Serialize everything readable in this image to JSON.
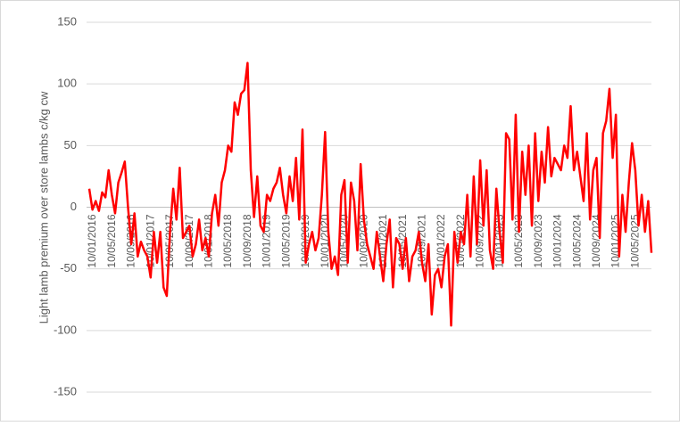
{
  "chart_data": {
    "type": "line",
    "y_label": "Light lamb premium over store lambs c/kg cw",
    "color": "#ff0000",
    "ylim": [
      -150,
      150
    ],
    "yticks": [
      -150,
      -100,
      -50,
      0,
      50,
      100,
      150
    ],
    "grid": true,
    "categories": [
      "10/01/2016",
      null,
      null,
      null,
      null,
      null,
      "10/05/2016",
      null,
      null,
      null,
      null,
      null,
      "10/09/2016",
      null,
      null,
      null,
      null,
      null,
      "10/01/2017",
      null,
      null,
      null,
      null,
      null,
      "10/05/2017",
      null,
      null,
      null,
      null,
      null,
      "10/09/2017",
      null,
      null,
      null,
      null,
      null,
      "10/01/2018",
      null,
      null,
      null,
      null,
      null,
      "10/05/2018",
      null,
      null,
      null,
      null,
      null,
      "10/09/2018",
      null,
      null,
      null,
      null,
      null,
      "10/01/2019",
      null,
      null,
      null,
      null,
      null,
      "10/05/2019",
      null,
      null,
      null,
      null,
      null,
      "10/09/2019",
      null,
      null,
      null,
      null,
      null,
      "10/01/2020",
      null,
      null,
      null,
      null,
      null,
      "10/05/2020",
      null,
      null,
      null,
      null,
      null,
      "10/09/2020",
      null,
      null,
      null,
      null,
      null,
      "10/01/2021",
      null,
      null,
      null,
      null,
      null,
      "10/05/2021",
      null,
      null,
      null,
      null,
      null,
      "10/09/2021",
      null,
      null,
      null,
      null,
      null,
      "10/01/2022",
      null,
      null,
      null,
      null,
      null,
      "10/05/2022",
      null,
      null,
      null,
      null,
      null,
      "10/09/2022",
      null,
      null,
      null,
      null,
      null,
      "10/01/2023",
      null,
      null,
      null,
      null,
      null,
      "10/05/2023",
      null,
      null,
      null,
      null,
      null,
      "10/09/2023",
      null,
      null,
      null,
      null,
      null,
      "10/01/2024",
      null,
      null,
      null,
      null,
      null,
      "10/05/2024",
      null,
      null,
      null,
      null,
      null,
      "10/09/2024",
      null,
      null,
      null,
      null,
      null,
      "10/01/2025",
      null,
      null,
      null,
      null,
      null,
      "10/05/2025",
      null,
      null,
      null,
      null,
      null,
      null
    ],
    "values": [
      15,
      -2,
      5,
      -3,
      12,
      8,
      30,
      10,
      -5,
      20,
      28,
      37,
      0,
      -30,
      -5,
      -40,
      -28,
      -35,
      -40,
      -57,
      -20,
      -45,
      -20,
      -65,
      -72,
      -20,
      15,
      -10,
      32,
      -25,
      -20,
      -15,
      -40,
      -30,
      -10,
      -35,
      -25,
      -40,
      -5,
      10,
      -15,
      20,
      30,
      50,
      45,
      85,
      75,
      92,
      95,
      117,
      30,
      -8,
      25,
      -15,
      -20,
      10,
      5,
      15,
      20,
      32,
      10,
      -5,
      25,
      5,
      40,
      -10,
      63,
      -45,
      -30,
      -20,
      -35,
      -25,
      10,
      61,
      -20,
      -50,
      -40,
      -55,
      10,
      22,
      -45,
      20,
      5,
      -35,
      35,
      -10,
      -30,
      -40,
      -50,
      -20,
      -40,
      -60,
      -30,
      -10,
      -65,
      -25,
      -30,
      -50,
      -25,
      -60,
      -40,
      -35,
      -20,
      -45,
      -60,
      -30,
      -87,
      -55,
      -50,
      -65,
      -40,
      -30,
      -96,
      -20,
      -45,
      -20,
      -30,
      10,
      -40,
      25,
      -30,
      38,
      -15,
      30,
      -35,
      -50,
      15,
      -20,
      -45,
      60,
      55,
      -10,
      75,
      -20,
      45,
      10,
      50,
      -15,
      60,
      5,
      45,
      20,
      65,
      25,
      40,
      35,
      30,
      50,
      40,
      82,
      30,
      45,
      25,
      5,
      60,
      -10,
      30,
      40,
      -25,
      60,
      70,
      96,
      40,
      75,
      -40,
      10,
      -20,
      20,
      52,
      30,
      -15,
      10,
      -20,
      5,
      -37
    ]
  }
}
